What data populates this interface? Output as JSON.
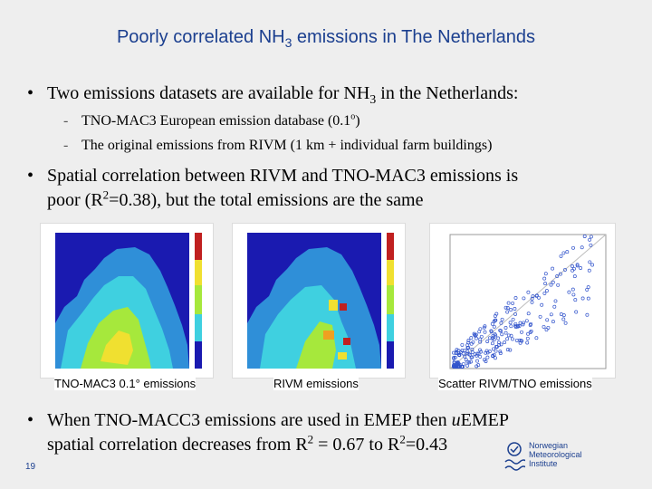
{
  "title": {
    "prefix": "Poorly correlated NH",
    "sub": "3",
    "suffix": " emissions in The Netherlands"
  },
  "bullets": [
    {
      "symbol": "•",
      "pre": "Two emissions datasets are available for NH",
      "sub": "3",
      "post": " in the Netherlands:"
    },
    {
      "symbol": "•",
      "line1": "Spatial correlation between RIVM and TNO-MAC3 emissions is",
      "line2_pre": "poor (R",
      "line2_sup": "2",
      "line2_post": "=0.38), but the total emissions are the same"
    },
    {
      "symbol": "•",
      "line1_pre": "When TNO-MACC3 emissions are used in EMEP then ",
      "line1_em": "u",
      "line1_post": "EMEP",
      "line2_pre": "spatial correlation decreases from R",
      "line2_sup1": "2",
      "line2_mid": " = 0.67 to R",
      "line2_sup2": "2",
      "line2_post": "=0.43"
    }
  ],
  "sub_items": [
    {
      "dash": "-",
      "text": "TNO-MAC3 European emission database (0.1",
      "sup": "o",
      "end": ")"
    },
    {
      "dash": "-",
      "text": "The original emissions from RIVM (1 km + individual farm buildings)"
    }
  ],
  "panels": [
    {
      "caption": "TNO-MAC3 0.1° emissions"
    },
    {
      "caption": "RIVM emissions"
    },
    {
      "caption": "Scatter RIVM/TNO emissions"
    }
  ],
  "slide_number": "19",
  "logo": {
    "name": "Norwegian\nMeteorological\nInstitute"
  },
  "colors": {
    "title": "#1b3f8f",
    "background": "#eeeeee",
    "scatter_points": "#3355cc"
  }
}
